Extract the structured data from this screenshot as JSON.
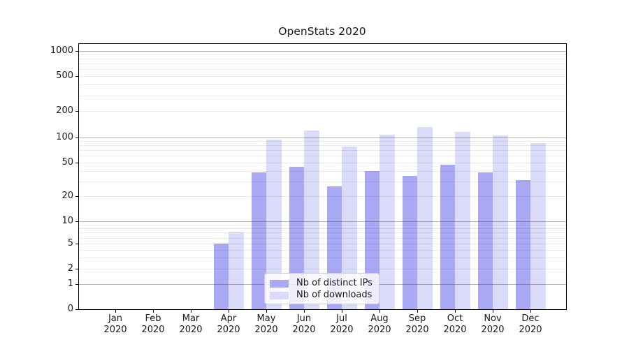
{
  "title": "OpenStats 2020",
  "chart_data": {
    "type": "bar",
    "title": "OpenStats 2020",
    "x_categories": [
      "Jan 2020",
      "Feb 2020",
      "Mar 2020",
      "Apr 2020",
      "May 2020",
      "Jun 2020",
      "Jul 2020",
      "Aug 2020",
      "Sep 2020",
      "Oct 2020",
      "Nov 2020",
      "Dec 2020"
    ],
    "month_labels": [
      "Jan",
      "Feb",
      "Mar",
      "Apr",
      "May",
      "Jun",
      "Jul",
      "Aug",
      "Sep",
      "Oct",
      "Nov",
      "Dec"
    ],
    "year_label": "2020",
    "series": [
      {
        "name": "Nb of distinct IPs",
        "color": "#a9a9f3",
        "values": [
          0,
          0,
          0,
          5,
          38,
          45,
          26,
          40,
          35,
          47,
          38,
          31
        ]
      },
      {
        "name": "Nb of downloads",
        "color": "#dadaf9",
        "values": [
          0,
          0,
          0,
          7,
          93,
          120,
          78,
          107,
          130,
          115,
          105,
          85
        ]
      }
    ],
    "yscale": "symlog",
    "ylim": [
      0,
      1000
    ],
    "ytick_labels": [
      "0",
      "1",
      "2",
      "5",
      "10",
      "20",
      "50",
      "100",
      "200",
      "500",
      "1000"
    ],
    "ytick_values": [
      0,
      1,
      2,
      5,
      10,
      20,
      50,
      100,
      200,
      500,
      1000
    ],
    "minor_grid_values": [
      2,
      3,
      4,
      5,
      6,
      7,
      8,
      9,
      20,
      30,
      40,
      50,
      60,
      70,
      80,
      90,
      200,
      300,
      400,
      500,
      600,
      700,
      800,
      900
    ],
    "major_grid_values": [
      1,
      10,
      100,
      1000
    ],
    "grid": "horizontal",
    "legend_position": "lower-center"
  }
}
